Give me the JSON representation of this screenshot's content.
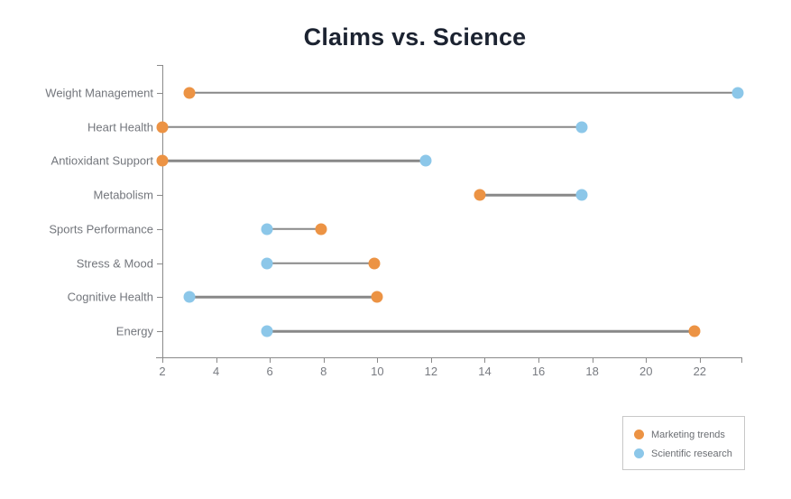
{
  "title": "Claims vs. Science",
  "colors": {
    "marketing": "#EC9344",
    "science": "#8CC7E9",
    "connector": "#888888",
    "axis": "#8A8A8A"
  },
  "legend": {
    "items": [
      {
        "label": "Marketing trends",
        "series": "marketing"
      },
      {
        "label": "Scientific research",
        "series": "science"
      }
    ],
    "position": "bottom-right"
  },
  "chart_data": {
    "type": "dumbbell",
    "title": "Claims vs. Science",
    "xlabel": "",
    "ylabel": "",
    "categories": [
      "Weight Management",
      "Heart Health",
      "Antioxidant Support",
      "Metabolism",
      "Sports Performance",
      "Stress & Mood",
      "Cognitive Health",
      "Energy"
    ],
    "series": [
      {
        "name": "Marketing trends",
        "color_key": "marketing",
        "values": [
          3,
          2,
          2,
          13.8,
          7.9,
          9.9,
          10,
          21.8
        ]
      },
      {
        "name": "Scientific research",
        "color_key": "science",
        "values": [
          23.4,
          17.6,
          11.8,
          17.6,
          5.9,
          5.9,
          3,
          5.9
        ]
      }
    ],
    "x_ticks": [
      2,
      4,
      6,
      8,
      10,
      12,
      14,
      16,
      18,
      20,
      22
    ],
    "xlim": [
      2,
      23.55
    ],
    "grid": false,
    "legend_position": "bottom-right"
  }
}
